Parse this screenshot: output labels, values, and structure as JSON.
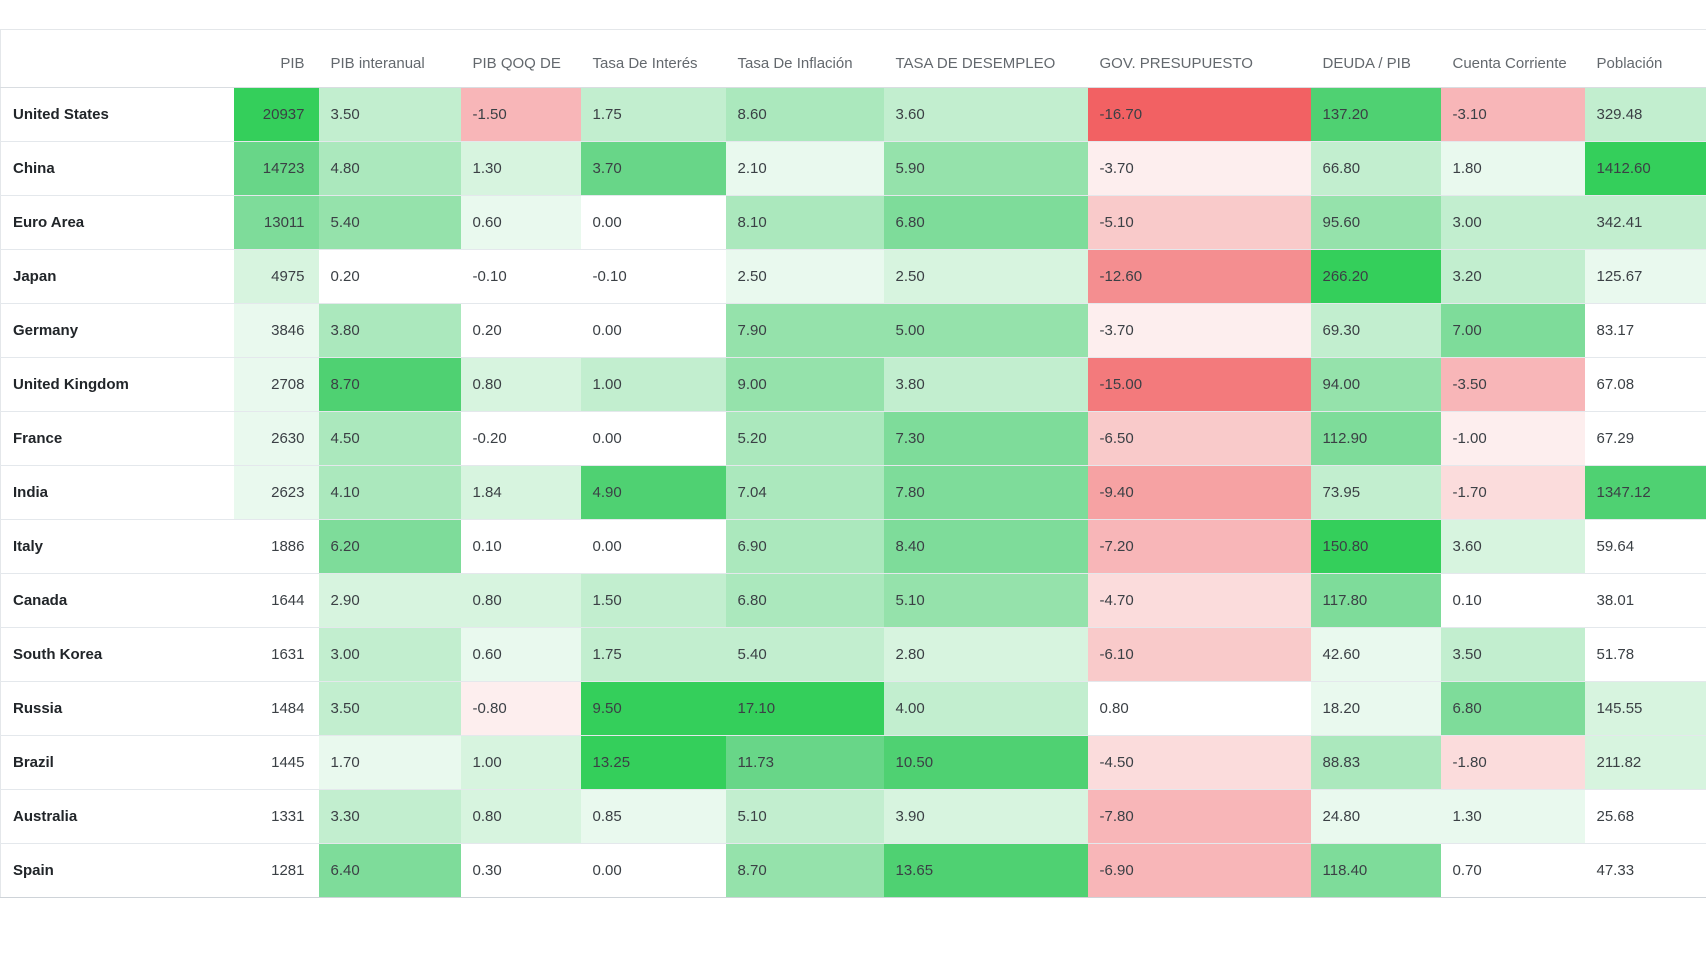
{
  "page": {
    "background": "#ffffff"
  },
  "palette": {
    "g0": "#ffffff",
    "g1": "#e9f9ee",
    "g2": "#d7f4df",
    "g3": "#c2eecf",
    "g4": "#abe8bd",
    "g5": "#95e2ab",
    "g6": "#7edc9a",
    "g7": "#68d688",
    "g8": "#4fd172",
    "g9": "#34cf5b",
    "r1": "#fdeeee",
    "r2": "#fbdcdc",
    "r3": "#f9caca",
    "r4": "#f8b6b8",
    "r5": "#f6a2a3",
    "r6": "#f48e90",
    "r7": "#f37a7c",
    "r8": "#f26163"
  },
  "table": {
    "columns": [
      {
        "key": "country",
        "label": ""
      },
      {
        "key": "pib",
        "label": "PIB"
      },
      {
        "key": "interanual",
        "label": "PIB interanual"
      },
      {
        "key": "qoq",
        "label": "PIB QOQ DE"
      },
      {
        "key": "interes",
        "label": "Tasa De Interés"
      },
      {
        "key": "inflacion",
        "label": "Tasa De Inflación"
      },
      {
        "key": "desempleo",
        "label": "TASA DE DESEMPLEO"
      },
      {
        "key": "presupuesto",
        "label": "GOV. PRESUPUESTO"
      },
      {
        "key": "deuda",
        "label": "DEUDA / PIB"
      },
      {
        "key": "cuenta",
        "label": "Cuenta Corriente"
      },
      {
        "key": "poblacion",
        "label": "Población"
      }
    ],
    "rows": [
      {
        "country": "United States",
        "cells": [
          [
            "20937",
            "g9"
          ],
          [
            "3.50",
            "g3"
          ],
          [
            "-1.50",
            "r4"
          ],
          [
            "1.75",
            "g3"
          ],
          [
            "8.60",
            "g4"
          ],
          [
            "3.60",
            "g3"
          ],
          [
            "-16.70",
            "r8"
          ],
          [
            "137.20",
            "g8"
          ],
          [
            "-3.10",
            "r4"
          ],
          [
            "329.48",
            "g3"
          ]
        ]
      },
      {
        "country": "China",
        "cells": [
          [
            "14723",
            "g7"
          ],
          [
            "4.80",
            "g4"
          ],
          [
            "1.30",
            "g2"
          ],
          [
            "3.70",
            "g7"
          ],
          [
            "2.10",
            "g1"
          ],
          [
            "5.90",
            "g5"
          ],
          [
            "-3.70",
            "r1"
          ],
          [
            "66.80",
            "g3"
          ],
          [
            "1.80",
            "g1"
          ],
          [
            "1412.60",
            "g9"
          ]
        ]
      },
      {
        "country": "Euro Area",
        "cells": [
          [
            "13011",
            "g6"
          ],
          [
            "5.40",
            "g5"
          ],
          [
            "0.60",
            "g1"
          ],
          [
            "0.00",
            "g0"
          ],
          [
            "8.10",
            "g4"
          ],
          [
            "6.80",
            "g6"
          ],
          [
            "-5.10",
            "r3"
          ],
          [
            "95.60",
            "g5"
          ],
          [
            "3.00",
            "g3"
          ],
          [
            "342.41",
            "g3"
          ]
        ]
      },
      {
        "country": "Japan",
        "cells": [
          [
            "4975",
            "g2"
          ],
          [
            "0.20",
            "g0"
          ],
          [
            "-0.10",
            "g0"
          ],
          [
            "-0.10",
            "g0"
          ],
          [
            "2.50",
            "g1"
          ],
          [
            "2.50",
            "g2"
          ],
          [
            "-12.60",
            "r6"
          ],
          [
            "266.20",
            "g9"
          ],
          [
            "3.20",
            "g3"
          ],
          [
            "125.67",
            "g1"
          ]
        ]
      },
      {
        "country": "Germany",
        "cells": [
          [
            "3846",
            "g1"
          ],
          [
            "3.80",
            "g4"
          ],
          [
            "0.20",
            "g0"
          ],
          [
            "0.00",
            "g0"
          ],
          [
            "7.90",
            "g5"
          ],
          [
            "5.00",
            "g5"
          ],
          [
            "-3.70",
            "r1"
          ],
          [
            "69.30",
            "g3"
          ],
          [
            "7.00",
            "g6"
          ],
          [
            "83.17",
            "g0"
          ]
        ]
      },
      {
        "country": "United Kingdom",
        "cells": [
          [
            "2708",
            "g1"
          ],
          [
            "8.70",
            "g8"
          ],
          [
            "0.80",
            "g2"
          ],
          [
            "1.00",
            "g3"
          ],
          [
            "9.00",
            "g5"
          ],
          [
            "3.80",
            "g3"
          ],
          [
            "-15.00",
            "r7"
          ],
          [
            "94.00",
            "g5"
          ],
          [
            "-3.50",
            "r4"
          ],
          [
            "67.08",
            "g0"
          ]
        ]
      },
      {
        "country": "France",
        "cells": [
          [
            "2630",
            "g1"
          ],
          [
            "4.50",
            "g4"
          ],
          [
            "-0.20",
            "g0"
          ],
          [
            "0.00",
            "g0"
          ],
          [
            "5.20",
            "g4"
          ],
          [
            "7.30",
            "g6"
          ],
          [
            "-6.50",
            "r3"
          ],
          [
            "112.90",
            "g6"
          ],
          [
            "-1.00",
            "r1"
          ],
          [
            "67.29",
            "g0"
          ]
        ]
      },
      {
        "country": "India",
        "cells": [
          [
            "2623",
            "g1"
          ],
          [
            "4.10",
            "g4"
          ],
          [
            "1.84",
            "g2"
          ],
          [
            "4.90",
            "g8"
          ],
          [
            "7.04",
            "g4"
          ],
          [
            "7.80",
            "g6"
          ],
          [
            "-9.40",
            "r5"
          ],
          [
            "73.95",
            "g3"
          ],
          [
            "-1.70",
            "r2"
          ],
          [
            "1347.12",
            "g8"
          ]
        ]
      },
      {
        "country": "Italy",
        "cells": [
          [
            "1886",
            "g0"
          ],
          [
            "6.20",
            "g6"
          ],
          [
            "0.10",
            "g0"
          ],
          [
            "0.00",
            "g0"
          ],
          [
            "6.90",
            "g4"
          ],
          [
            "8.40",
            "g6"
          ],
          [
            "-7.20",
            "r4"
          ],
          [
            "150.80",
            "g9"
          ],
          [
            "3.60",
            "g2"
          ],
          [
            "59.64",
            "g0"
          ]
        ]
      },
      {
        "country": "Canada",
        "cells": [
          [
            "1644",
            "g0"
          ],
          [
            "2.90",
            "g2"
          ],
          [
            "0.80",
            "g2"
          ],
          [
            "1.50",
            "g3"
          ],
          [
            "6.80",
            "g4"
          ],
          [
            "5.10",
            "g5"
          ],
          [
            "-4.70",
            "r2"
          ],
          [
            "117.80",
            "g6"
          ],
          [
            "0.10",
            "g0"
          ],
          [
            "38.01",
            "g0"
          ]
        ]
      },
      {
        "country": "South Korea",
        "cells": [
          [
            "1631",
            "g0"
          ],
          [
            "3.00",
            "g3"
          ],
          [
            "0.60",
            "g1"
          ],
          [
            "1.75",
            "g3"
          ],
          [
            "5.40",
            "g3"
          ],
          [
            "2.80",
            "g2"
          ],
          [
            "-6.10",
            "r3"
          ],
          [
            "42.60",
            "g1"
          ],
          [
            "3.50",
            "g3"
          ],
          [
            "51.78",
            "g0"
          ]
        ]
      },
      {
        "country": "Russia",
        "cells": [
          [
            "1484",
            "g0"
          ],
          [
            "3.50",
            "g3"
          ],
          [
            "-0.80",
            "r1"
          ],
          [
            "9.50",
            "g9"
          ],
          [
            "17.10",
            "g9"
          ],
          [
            "4.00",
            "g3"
          ],
          [
            "0.80",
            "g0"
          ],
          [
            "18.20",
            "g1"
          ],
          [
            "6.80",
            "g6"
          ],
          [
            "145.55",
            "g2"
          ]
        ]
      },
      {
        "country": "Brazil",
        "cells": [
          [
            "1445",
            "g0"
          ],
          [
            "1.70",
            "g1"
          ],
          [
            "1.00",
            "g2"
          ],
          [
            "13.25",
            "g9"
          ],
          [
            "11.73",
            "g7"
          ],
          [
            "10.50",
            "g8"
          ],
          [
            "-4.50",
            "r2"
          ],
          [
            "88.83",
            "g4"
          ],
          [
            "-1.80",
            "r2"
          ],
          [
            "211.82",
            "g2"
          ]
        ]
      },
      {
        "country": "Australia",
        "cells": [
          [
            "1331",
            "g0"
          ],
          [
            "3.30",
            "g3"
          ],
          [
            "0.80",
            "g2"
          ],
          [
            "0.85",
            "g1"
          ],
          [
            "5.10",
            "g3"
          ],
          [
            "3.90",
            "g2"
          ],
          [
            "-7.80",
            "r4"
          ],
          [
            "24.80",
            "g1"
          ],
          [
            "1.30",
            "g1"
          ],
          [
            "25.68",
            "g0"
          ]
        ]
      },
      {
        "country": "Spain",
        "cells": [
          [
            "1281",
            "g0"
          ],
          [
            "6.40",
            "g6"
          ],
          [
            "0.30",
            "g0"
          ],
          [
            "0.00",
            "g0"
          ],
          [
            "8.70",
            "g5"
          ],
          [
            "13.65",
            "g8"
          ],
          [
            "-6.90",
            "r4"
          ],
          [
            "118.40",
            "g6"
          ],
          [
            "0.70",
            "g0"
          ],
          [
            "47.33",
            "g0"
          ]
        ]
      }
    ]
  }
}
